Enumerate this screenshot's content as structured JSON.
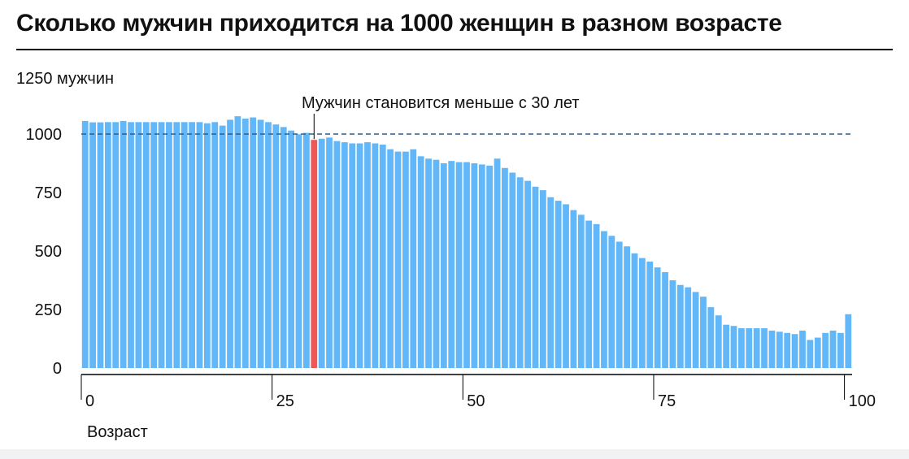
{
  "chart_data": {
    "type": "bar",
    "title": "Сколько мужчин приходится на 1000 женщин в разном возрасте",
    "ylabel": "1250 мужчин",
    "xlabel": "Возраст",
    "x_ticks": [
      0,
      25,
      50,
      75,
      100
    ],
    "y_ticks": [
      0,
      250,
      500,
      750,
      1000
    ],
    "xlim": [
      0,
      101
    ],
    "ylim": [
      0,
      1250
    ],
    "grid": false,
    "reference_line": {
      "value": 1000,
      "style": "dashed"
    },
    "annotation": {
      "text": "Мужчин становится меньше с 30 лет",
      "age": 30
    },
    "highlight_age": 30,
    "colors": {
      "bar": "#62b7f9",
      "highlight": "#ef5656",
      "reference_line": "#2f5d8a",
      "axis": "#000000"
    },
    "x": [
      0,
      1,
      2,
      3,
      4,
      5,
      6,
      7,
      8,
      9,
      10,
      11,
      12,
      13,
      14,
      15,
      16,
      17,
      18,
      19,
      20,
      21,
      22,
      23,
      24,
      25,
      26,
      27,
      28,
      29,
      30,
      31,
      32,
      33,
      34,
      35,
      36,
      37,
      38,
      39,
      40,
      41,
      42,
      43,
      44,
      45,
      46,
      47,
      48,
      49,
      50,
      51,
      52,
      53,
      54,
      55,
      56,
      57,
      58,
      59,
      60,
      61,
      62,
      63,
      64,
      65,
      66,
      67,
      68,
      69,
      70,
      71,
      72,
      73,
      74,
      75,
      76,
      77,
      78,
      79,
      80,
      81,
      82,
      83,
      84,
      85,
      86,
      87,
      88,
      89,
      90,
      91,
      92,
      93,
      94,
      95,
      96,
      97,
      98,
      99,
      100
    ],
    "values": [
      1056,
      1050,
      1050,
      1051,
      1051,
      1056,
      1051,
      1051,
      1051,
      1051,
      1051,
      1051,
      1051,
      1051,
      1051,
      1051,
      1046,
      1051,
      1036,
      1061,
      1076,
      1066,
      1071,
      1061,
      1051,
      1041,
      1030,
      1015,
      999,
      1005,
      975,
      980,
      985,
      970,
      965,
      960,
      960,
      965,
      960,
      955,
      935,
      925,
      925,
      935,
      905,
      895,
      890,
      875,
      885,
      880,
      880,
      875,
      870,
      865,
      895,
      855,
      835,
      815,
      800,
      775,
      760,
      730,
      715,
      700,
      675,
      655,
      630,
      615,
      585,
      565,
      540,
      520,
      490,
      470,
      455,
      430,
      410,
      375,
      355,
      345,
      325,
      305,
      260,
      225,
      185,
      180,
      170,
      170,
      170,
      170,
      160,
      155,
      150,
      145,
      160,
      120,
      130,
      150,
      160,
      150,
      230
    ]
  }
}
